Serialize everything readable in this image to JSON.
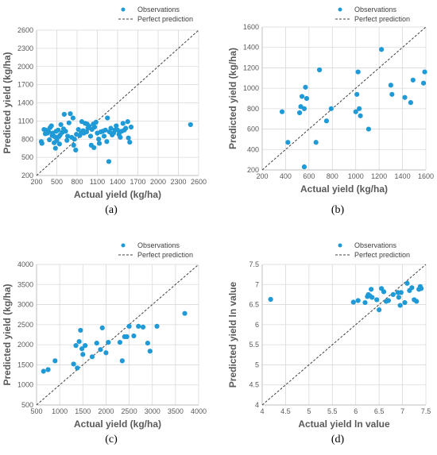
{
  "legend": {
    "observations": "Observations",
    "perfect": "Perfect prediction"
  },
  "colors": {
    "points": "#1f9ad6",
    "perfect_line": "#404040",
    "grid": "#d9d9d9",
    "text": "#595959"
  },
  "chart_data": [
    {
      "id": "a",
      "type": "scatter",
      "caption": "(a)",
      "xlabel": "Actual yield (kg/ha)",
      "ylabel": "Predicted yield (kg/ha)",
      "xlim": [
        200,
        2600
      ],
      "ylim": [
        200,
        2600
      ],
      "xticks": [
        200,
        500,
        800,
        1100,
        1400,
        1700,
        2000,
        2300,
        2600
      ],
      "yticks": [
        200,
        500,
        800,
        1100,
        1400,
        1700,
        2000,
        2300,
        2600
      ],
      "grid": true,
      "legend_position": "top-right",
      "series": [
        {
          "name": "Observations",
          "points": [
            [
              270,
              760
            ],
            [
              280,
              730
            ],
            [
              310,
              960
            ],
            [
              330,
              890
            ],
            [
              340,
              950
            ],
            [
              360,
              900
            ],
            [
              380,
              920
            ],
            [
              390,
              790
            ],
            [
              400,
              990
            ],
            [
              420,
              1020
            ],
            [
              430,
              860
            ],
            [
              440,
              900
            ],
            [
              460,
              740
            ],
            [
              470,
              840
            ],
            [
              480,
              650
            ],
            [
              490,
              930
            ],
            [
              500,
              780
            ],
            [
              520,
              950
            ],
            [
              530,
              840
            ],
            [
              540,
              720
            ],
            [
              550,
              870
            ],
            [
              560,
              1040
            ],
            [
              580,
              910
            ],
            [
              600,
              970
            ],
            [
              610,
              1210
            ],
            [
              630,
              930
            ],
            [
              650,
              780
            ],
            [
              660,
              850
            ],
            [
              680,
              1070
            ],
            [
              700,
              1220
            ],
            [
              720,
              830
            ],
            [
              740,
              1150
            ],
            [
              750,
              700
            ],
            [
              760,
              800
            ],
            [
              780,
              620
            ],
            [
              790,
              880
            ],
            [
              820,
              960
            ],
            [
              840,
              860
            ],
            [
              860,
              900
            ],
            [
              870,
              1090
            ],
            [
              890,
              940
            ],
            [
              900,
              900
            ],
            [
              920,
              1060
            ],
            [
              940,
              920
            ],
            [
              950,
              1050
            ],
            [
              960,
              980
            ],
            [
              980,
              1010
            ],
            [
              1000,
              850
            ],
            [
              1010,
              700
            ],
            [
              1020,
              960
            ],
            [
              1040,
              1050
            ],
            [
              1050,
              660
            ],
            [
              1060,
              1000
            ],
            [
              1080,
              1080
            ],
            [
              1100,
              900
            ],
            [
              1120,
              800
            ],
            [
              1130,
              730
            ],
            [
              1150,
              920
            ],
            [
              1180,
              930
            ],
            [
              1200,
              850
            ],
            [
              1220,
              950
            ],
            [
              1240,
              760
            ],
            [
              1250,
              1150
            ],
            [
              1270,
              430
            ],
            [
              1280,
              920
            ],
            [
              1300,
              980
            ],
            [
              1320,
              870
            ],
            [
              1340,
              900
            ],
            [
              1360,
              950
            ],
            [
              1380,
              1020
            ],
            [
              1400,
              950
            ],
            [
              1420,
              880
            ],
            [
              1440,
              830
            ],
            [
              1460,
              930
            ],
            [
              1480,
              1060
            ],
            [
              1500,
              950
            ],
            [
              1520,
              980
            ],
            [
              1550,
              1090
            ],
            [
              1560,
              820
            ],
            [
              1580,
              750
            ],
            [
              1600,
              1000
            ],
            [
              2480,
              1040
            ]
          ]
        }
      ],
      "perfect_line": [
        [
          200,
          200
        ],
        [
          2600,
          2600
        ]
      ]
    },
    {
      "id": "b",
      "type": "scatter",
      "caption": "(b)",
      "xlabel": "Actual yield (kg/ha)",
      "ylabel": "Predicted yield (kg/ha)",
      "xlim": [
        200,
        1600
      ],
      "ylim": [
        200,
        1600
      ],
      "xticks": [
        200,
        400,
        600,
        800,
        1000,
        1200,
        1400,
        1600
      ],
      "yticks": [
        200,
        400,
        600,
        800,
        1000,
        1200,
        1400,
        1600
      ],
      "grid": true,
      "legend_position": "top-right",
      "series": [
        {
          "name": "Observations",
          "points": [
            [
              370,
              770
            ],
            [
              420,
              470
            ],
            [
              520,
              760
            ],
            [
              530,
              820
            ],
            [
              540,
              920
            ],
            [
              560,
              800
            ],
            [
              560,
              230
            ],
            [
              570,
              1010
            ],
            [
              580,
              900
            ],
            [
              660,
              470
            ],
            [
              690,
              1180
            ],
            [
              750,
              680
            ],
            [
              790,
              800
            ],
            [
              1000,
              770
            ],
            [
              1010,
              940
            ],
            [
              1020,
              1160
            ],
            [
              1030,
              800
            ],
            [
              1040,
              730
            ],
            [
              1110,
              600
            ],
            [
              1220,
              1380
            ],
            [
              1300,
              1030
            ],
            [
              1310,
              940
            ],
            [
              1420,
              910
            ],
            [
              1470,
              860
            ],
            [
              1490,
              1080
            ],
            [
              1580,
              1050
            ],
            [
              1590,
              1160
            ]
          ]
        }
      ],
      "perfect_line": [
        [
          200,
          200
        ],
        [
          1600,
          1600
        ]
      ]
    },
    {
      "id": "c",
      "type": "scatter",
      "caption": "(c)",
      "xlabel": "Actual yield (kg/ha)",
      "ylabel": "Predicted yield (kg/ha)",
      "xlim": [
        500,
        4000
      ],
      "ylim": [
        500,
        4000
      ],
      "xticks": [
        500,
        1000,
        1500,
        2000,
        2500,
        3000,
        3500,
        4000
      ],
      "yticks": [
        500,
        1000,
        1500,
        2000,
        2500,
        3000,
        3500,
        4000
      ],
      "grid": true,
      "legend_position": "top-right",
      "series": [
        {
          "name": "Observations",
          "points": [
            [
              650,
              1340
            ],
            [
              750,
              1380
            ],
            [
              900,
              1600
            ],
            [
              1300,
              1520
            ],
            [
              1350,
              1980
            ],
            [
              1380,
              1420
            ],
            [
              1420,
              2080
            ],
            [
              1450,
              2360
            ],
            [
              1480,
              1900
            ],
            [
              1500,
              1760
            ],
            [
              1550,
              1980
            ],
            [
              1700,
              1700
            ],
            [
              1800,
              2040
            ],
            [
              1880,
              1880
            ],
            [
              1920,
              2420
            ],
            [
              2000,
              1800
            ],
            [
              2050,
              2060
            ],
            [
              2300,
              2060
            ],
            [
              2350,
              1600
            ],
            [
              2400,
              2200
            ],
            [
              2450,
              2200
            ],
            [
              2500,
              2460
            ],
            [
              2600,
              2220
            ],
            [
              2700,
              2460
            ],
            [
              2800,
              2440
            ],
            [
              2900,
              2040
            ],
            [
              2950,
              1840
            ],
            [
              3100,
              2460
            ],
            [
              3700,
              2780
            ]
          ]
        }
      ],
      "perfect_line": [
        [
          500,
          500
        ],
        [
          4000,
          4000
        ]
      ]
    },
    {
      "id": "d",
      "type": "scatter",
      "caption": "(d)",
      "xlabel": "Actual yield ln value",
      "ylabel": "Predicted yield ln value",
      "xlim": [
        4,
        7.5
      ],
      "ylim": [
        4,
        7.5
      ],
      "xticks": [
        4,
        4.5,
        5,
        5.5,
        6,
        6.5,
        7,
        7.5
      ],
      "yticks": [
        4,
        4.5,
        5,
        5.5,
        6,
        6.5,
        7,
        7.5
      ],
      "xtick_labels": [
        "4",
        "4.5",
        "5",
        "5.5",
        "6",
        "6.5",
        "7",
        "7.5"
      ],
      "ytick_labels": [
        "4",
        "4.5",
        "5",
        "5.5",
        "6",
        "6.5",
        "7",
        "7.5"
      ],
      "grid": true,
      "legend_position": "top-right",
      "series": [
        {
          "name": "Observations",
          "points": [
            [
              4.18,
              6.63
            ],
            [
              5.95,
              6.56
            ],
            [
              6.05,
              6.6
            ],
            [
              6.2,
              6.55
            ],
            [
              6.25,
              6.7
            ],
            [
              6.27,
              6.75
            ],
            [
              6.3,
              6.72
            ],
            [
              6.33,
              6.88
            ],
            [
              6.35,
              6.68
            ],
            [
              6.45,
              6.62
            ],
            [
              6.5,
              6.37
            ],
            [
              6.55,
              6.9
            ],
            [
              6.6,
              6.82
            ],
            [
              6.65,
              6.58
            ],
            [
              6.7,
              6.6
            ],
            [
              6.8,
              6.75
            ],
            [
              6.9,
              6.8
            ],
            [
              6.92,
              6.68
            ],
            [
              6.95,
              6.48
            ],
            [
              6.97,
              6.8
            ],
            [
              7.05,
              6.55
            ],
            [
              7.1,
              7.03
            ],
            [
              7.15,
              6.85
            ],
            [
              7.2,
              6.92
            ],
            [
              7.25,
              6.62
            ],
            [
              7.3,
              6.58
            ],
            [
              7.35,
              6.88
            ],
            [
              7.38,
              6.95
            ],
            [
              7.4,
              6.9
            ]
          ]
        }
      ],
      "perfect_line": [
        [
          4,
          4
        ],
        [
          7.5,
          7.5
        ]
      ]
    }
  ]
}
